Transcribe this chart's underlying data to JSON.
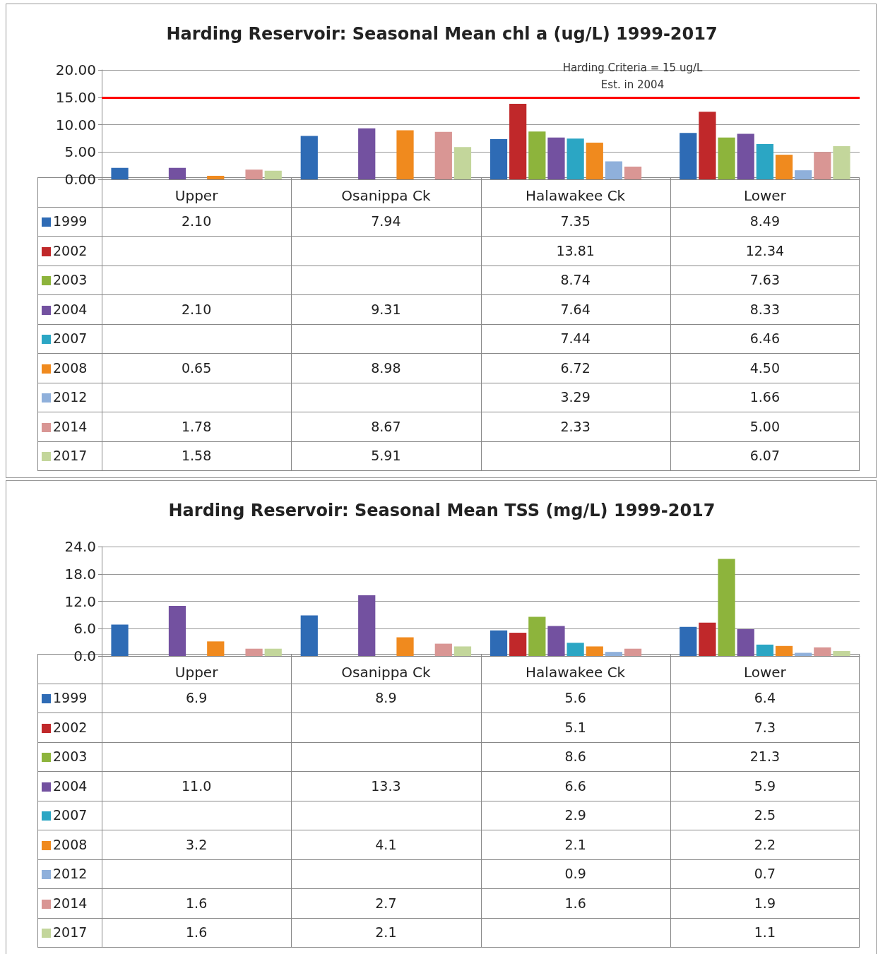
{
  "chart_data": [
    {
      "type": "bar",
      "title": "Harding Reservoir: Seasonal Mean chl a (ug/L) 1999-2017",
      "categories": [
        "Upper",
        "Osanippa Ck",
        "Halawakee Ck",
        "Lower"
      ],
      "ylim": [
        0,
        20
      ],
      "yticks": [
        {
          "value": 0,
          "label": "0.00"
        },
        {
          "value": 5,
          "label": "5.00"
        },
        {
          "value": 10,
          "label": "10.00"
        },
        {
          "value": 15,
          "label": "15.00"
        },
        {
          "value": 20,
          "label": "20.00"
        }
      ],
      "grid": "y",
      "legend": "bottom",
      "data_labels": true,
      "ref_lines": [
        {
          "axis": "y",
          "value": 15,
          "label": "Harding Criteria = 15 ug/L\nEst. in 2004",
          "color": "#ff0000"
        }
      ],
      "series": [
        {
          "name": "1999",
          "color": "#2e6bb5",
          "values": [
            2.1,
            7.94,
            7.35,
            8.49
          ],
          "value_labels": [
            "2.10",
            "7.94",
            "7.35",
            "8.49"
          ]
        },
        {
          "name": "2002",
          "color": "#c0282a",
          "values": [
            null,
            null,
            13.81,
            12.34
          ],
          "value_labels": [
            null,
            null,
            "13.81",
            "12.34"
          ]
        },
        {
          "name": "2003",
          "color": "#8db43c",
          "values": [
            null,
            null,
            8.74,
            7.63
          ],
          "value_labels": [
            null,
            null,
            "8.74",
            "7.63"
          ]
        },
        {
          "name": "2004",
          "color": "#7351a0",
          "values": [
            2.1,
            9.31,
            7.64,
            8.33
          ],
          "value_labels": [
            "2.10",
            "9.31",
            "7.64",
            "8.33"
          ]
        },
        {
          "name": "2007",
          "color": "#2ba6c4",
          "values": [
            null,
            null,
            7.44,
            6.46
          ],
          "value_labels": [
            null,
            null,
            "7.44",
            "6.46"
          ]
        },
        {
          "name": "2008",
          "color": "#f08a1e",
          "values": [
            0.65,
            8.98,
            6.72,
            4.5
          ],
          "value_labels": [
            "0.65",
            "8.98",
            "6.72",
            "4.50"
          ]
        },
        {
          "name": "2012",
          "color": "#8fb0db",
          "values": [
            null,
            null,
            3.29,
            1.66
          ],
          "value_labels": [
            null,
            null,
            "3.29",
            "1.66"
          ]
        },
        {
          "name": "2014",
          "color": "#d99694",
          "values": [
            1.78,
            8.67,
            2.33,
            5.0
          ],
          "value_labels": [
            "1.78",
            "8.67",
            "2.33",
            "5.00"
          ]
        },
        {
          "name": "2017",
          "color": "#c3d69b",
          "values": [
            1.58,
            5.91,
            null,
            6.07
          ],
          "value_labels": [
            "1.58",
            "5.91",
            null,
            "6.07"
          ]
        }
      ]
    },
    {
      "type": "bar",
      "title": "Harding Reservoir: Seasonal Mean TSS (mg/L) 1999-2017",
      "categories": [
        "Upper",
        "Osanippa Ck",
        "Halawakee Ck",
        "Lower"
      ],
      "ylim": [
        0,
        24
      ],
      "yticks": [
        {
          "value": 0,
          "label": "0.0"
        },
        {
          "value": 6,
          "label": "6.0"
        },
        {
          "value": 12,
          "label": "12.0"
        },
        {
          "value": 18,
          "label": "18.0"
        },
        {
          "value": 24,
          "label": "24.0"
        }
      ],
      "grid": "y",
      "legend": "bottom",
      "data_labels": true,
      "series": [
        {
          "name": "1999",
          "color": "#2e6bb5",
          "values": [
            6.9,
            8.9,
            5.6,
            6.4
          ],
          "value_labels": [
            "6.9",
            "8.9",
            "5.6",
            "6.4"
          ]
        },
        {
          "name": "2002",
          "color": "#c0282a",
          "values": [
            null,
            null,
            5.1,
            7.3
          ],
          "value_labels": [
            null,
            null,
            "5.1",
            "7.3"
          ]
        },
        {
          "name": "2003",
          "color": "#8db43c",
          "values": [
            null,
            null,
            8.6,
            21.3
          ],
          "value_labels": [
            null,
            null,
            "8.6",
            "21.3"
          ]
        },
        {
          "name": "2004",
          "color": "#7351a0",
          "values": [
            11.0,
            13.3,
            6.6,
            5.9
          ],
          "value_labels": [
            "11.0",
            "13.3",
            "6.6",
            "5.9"
          ]
        },
        {
          "name": "2007",
          "color": "#2ba6c4",
          "values": [
            null,
            null,
            2.9,
            2.5
          ],
          "value_labels": [
            null,
            null,
            "2.9",
            "2.5"
          ]
        },
        {
          "name": "2008",
          "color": "#f08a1e",
          "values": [
            3.2,
            4.1,
            2.1,
            2.2
          ],
          "value_labels": [
            "3.2",
            "4.1",
            "2.1",
            "2.2"
          ]
        },
        {
          "name": "2012",
          "color": "#8fb0db",
          "values": [
            null,
            null,
            0.9,
            0.7
          ],
          "value_labels": [
            null,
            null,
            "0.9",
            "0.7"
          ]
        },
        {
          "name": "2014",
          "color": "#d99694",
          "values": [
            1.6,
            2.7,
            1.6,
            1.9
          ],
          "value_labels": [
            "1.6",
            "2.7",
            "1.6",
            "1.9"
          ]
        },
        {
          "name": "2017",
          "color": "#c3d69b",
          "values": [
            1.6,
            2.1,
            null,
            1.1
          ],
          "value_labels": [
            "1.6",
            "2.1",
            null,
            "1.1"
          ]
        }
      ]
    }
  ]
}
